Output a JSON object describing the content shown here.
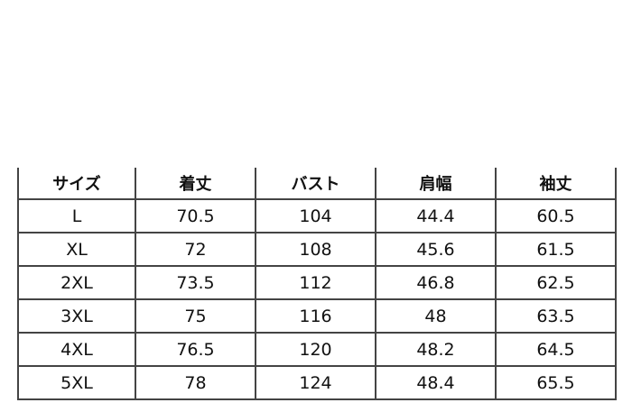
{
  "table": {
    "headers": [
      "サイズ",
      "着丈",
      "バスト",
      "肩幅",
      "袖丈"
    ],
    "rows": [
      [
        "L",
        "70.5",
        "104",
        "44.4",
        "60.5"
      ],
      [
        "XL",
        "72",
        "108",
        "45.6",
        "61.5"
      ],
      [
        "2XL",
        "73.5",
        "112",
        "46.8",
        "62.5"
      ],
      [
        "3XL",
        "75",
        "116",
        "48",
        "63.5"
      ],
      [
        "4XL",
        "76.5",
        "120",
        "48.2",
        "64.5"
      ],
      [
        "5XL",
        "78",
        "124",
        "48.4",
        "65.5"
      ]
    ]
  }
}
